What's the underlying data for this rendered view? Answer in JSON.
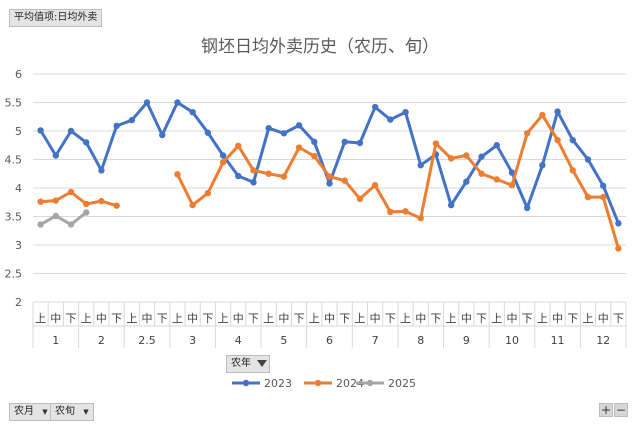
{
  "pivot_fields": {
    "value_field": "平均值项:日均外卖",
    "legend_field": "农年",
    "axis_fields": [
      "农月",
      "农旬"
    ]
  },
  "zoom": {
    "plus": "+",
    "minus": "−"
  },
  "chart_data": {
    "type": "line",
    "title": "钢坯日均外卖历史（农历、旬）",
    "xlabel": "",
    "ylabel": "",
    "ylim": [
      2,
      6
    ],
    "yticks": [
      2,
      2.5,
      3,
      3.5,
      4,
      4.5,
      5,
      5.5,
      6
    ],
    "grid": true,
    "legend_position": "bottom",
    "groups": [
      {
        "label": "1",
        "subs": [
          "上",
          "中",
          "下"
        ]
      },
      {
        "label": "2",
        "subs": [
          "上",
          "中",
          "下"
        ]
      },
      {
        "label": "2.5",
        "subs": [
          "上",
          "中",
          "下"
        ]
      },
      {
        "label": "3",
        "subs": [
          "上",
          "中",
          "下"
        ]
      },
      {
        "label": "4",
        "subs": [
          "上",
          "中",
          "下"
        ]
      },
      {
        "label": "5",
        "subs": [
          "上",
          "中",
          "下"
        ]
      },
      {
        "label": "6",
        "subs": [
          "上",
          "中",
          "下"
        ]
      },
      {
        "label": "7",
        "subs": [
          "上",
          "中",
          "下"
        ]
      },
      {
        "label": "8",
        "subs": [
          "上",
          "中",
          "下"
        ]
      },
      {
        "label": "9",
        "subs": [
          "上",
          "中",
          "下"
        ]
      },
      {
        "label": "10",
        "subs": [
          "上",
          "中",
          "下"
        ]
      },
      {
        "label": "11",
        "subs": [
          "上",
          "中",
          "下"
        ]
      },
      {
        "label": "12",
        "subs": [
          "上",
          "中",
          "下"
        ]
      }
    ],
    "series": [
      {
        "name": "2023",
        "color": "#4472c4",
        "values": [
          5.01,
          4.57,
          5.0,
          4.8,
          4.31,
          5.09,
          5.19,
          5.5,
          4.93,
          5.5,
          5.33,
          4.97,
          4.57,
          4.21,
          4.1,
          5.05,
          4.96,
          5.1,
          4.81,
          4.08,
          4.81,
          4.79,
          5.42,
          5.2,
          5.33,
          4.4,
          4.59,
          3.7,
          4.11,
          4.55,
          4.75,
          4.27,
          3.65,
          4.4,
          5.34,
          4.84,
          4.5,
          4.04,
          3.38
        ]
      },
      {
        "name": "2024",
        "color": "#ed7d31",
        "values": [
          3.76,
          3.78,
          3.93,
          3.72,
          3.77,
          3.69,
          null,
          null,
          null,
          4.24,
          3.7,
          3.91,
          4.45,
          4.74,
          4.31,
          4.25,
          4.2,
          4.71,
          4.56,
          4.2,
          4.13,
          3.81,
          4.05,
          3.58,
          3.59,
          3.47,
          4.78,
          4.52,
          4.57,
          4.25,
          4.15,
          4.05,
          4.96,
          5.28,
          4.84,
          4.31,
          3.84,
          3.84,
          2.94
        ]
      },
      {
        "name": "2025",
        "color": "#a5a5a5",
        "values": [
          3.36,
          3.51,
          3.36,
          3.57,
          null,
          null,
          null,
          null,
          null,
          null,
          null,
          null,
          null,
          null,
          null,
          null,
          null,
          null,
          null,
          null,
          null,
          null,
          null,
          null,
          null,
          null,
          null,
          null,
          null,
          null,
          null,
          null,
          null,
          null,
          null,
          null,
          null,
          null,
          null
        ]
      }
    ]
  }
}
